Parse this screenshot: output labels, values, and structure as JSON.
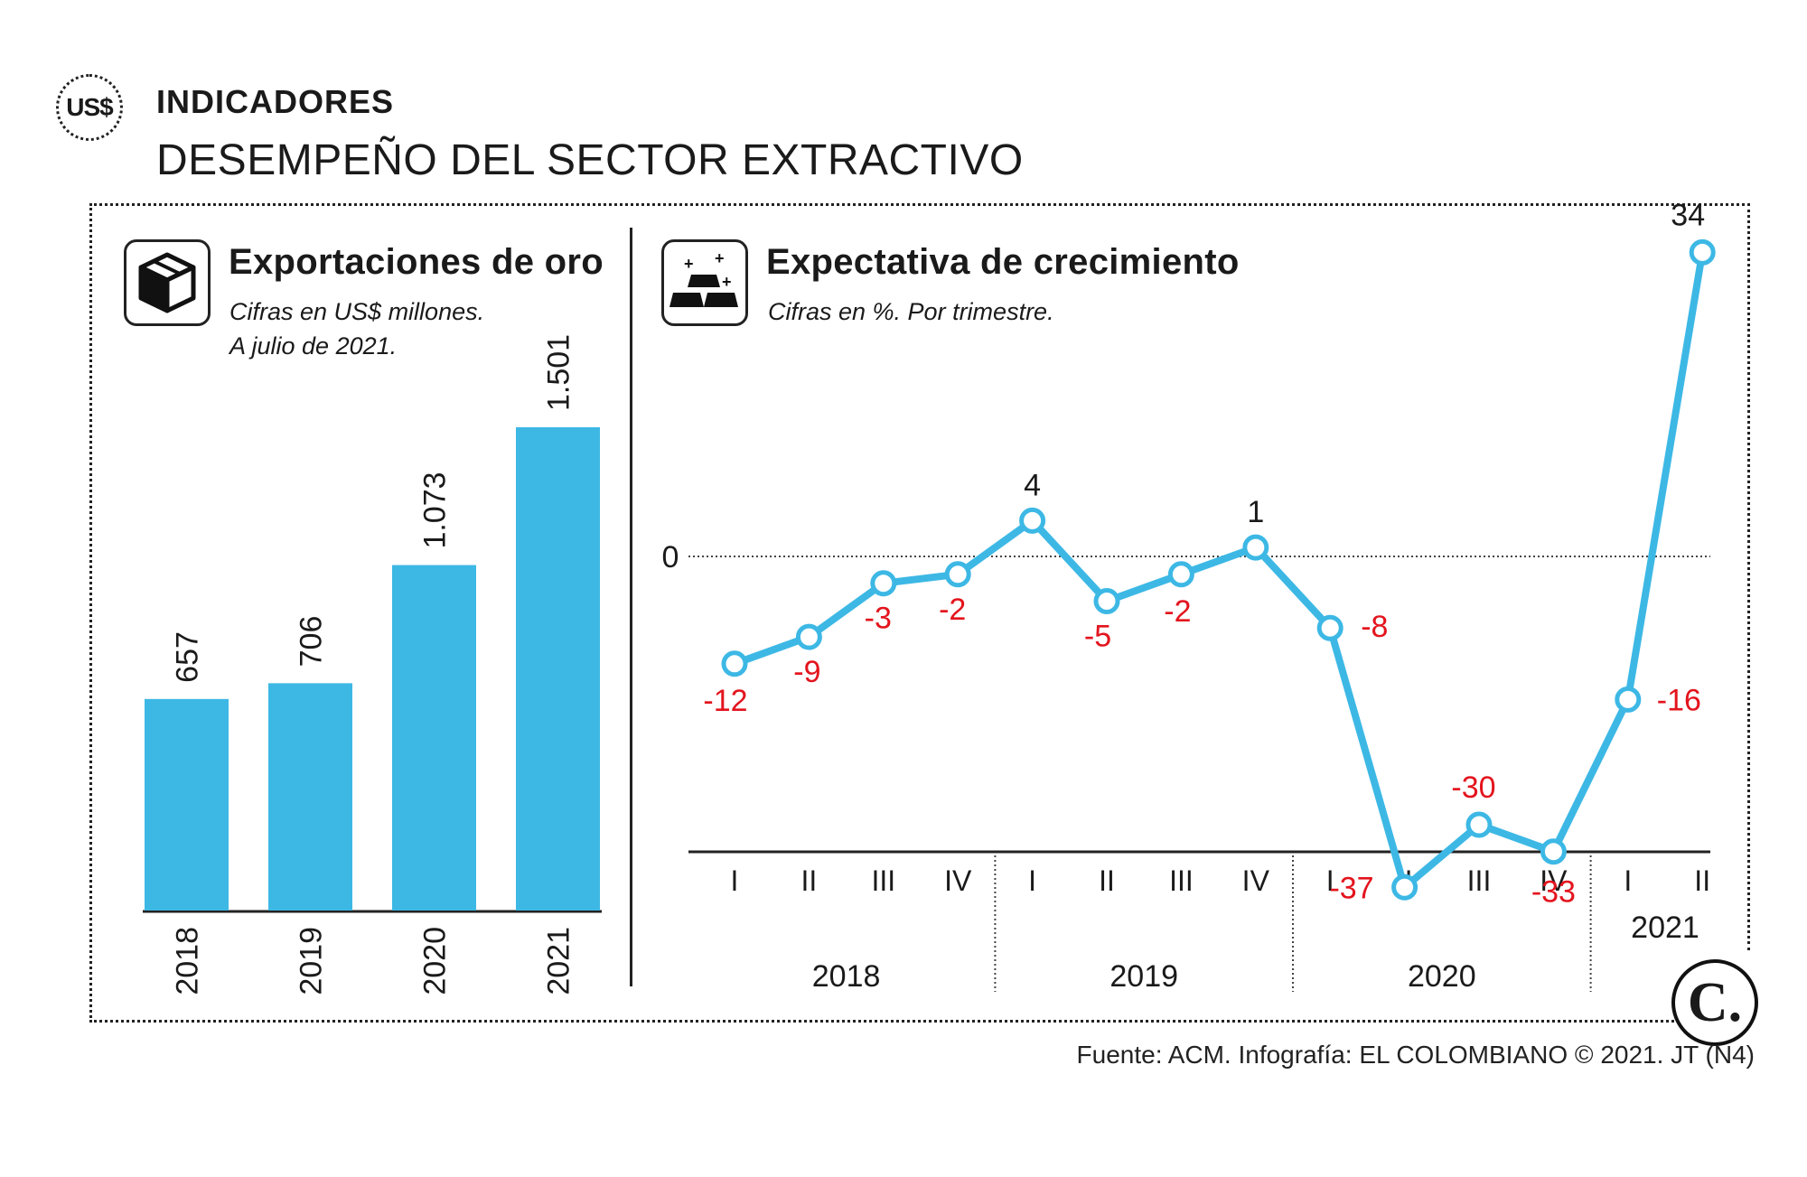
{
  "header": {
    "badge": "US$",
    "kicker": "INDICADORES",
    "headline": "DESEMPEÑO DEL SECTOR EXTRACTIVO"
  },
  "panels": {
    "left": {
      "title": "Exportaciones de oro",
      "subtitle_line1": "Cifras en US$ millones.",
      "subtitle_line2": "A julio de 2021.",
      "icon": "box-icon"
    },
    "right": {
      "title": "Expectativa de crecimiento",
      "subtitle": "Cifras en %. Por trimestre.",
      "icon": "gold-bars-icon"
    }
  },
  "colors": {
    "bar": "#3db8e5",
    "line": "#3db8e5",
    "negative_label": "#e3141d",
    "positive_label": "#1a1a1a"
  },
  "chart_data": [
    {
      "type": "bar",
      "categories": [
        "2018",
        "2019",
        "2020",
        "2021"
      ],
      "values": [
        657,
        706,
        1073,
        1501
      ],
      "value_labels": [
        "657",
        "706",
        "1.073",
        "1.501"
      ],
      "ylim": [
        0,
        1501
      ]
    },
    {
      "type": "line",
      "x": [
        "I",
        "II",
        "III",
        "IV",
        "I",
        "II",
        "III",
        "IV",
        "I",
        "II",
        "III",
        "IV",
        "I",
        "II"
      ],
      "year_groups": [
        {
          "label": "2018",
          "quarters": 4
        },
        {
          "label": "2019",
          "quarters": 4
        },
        {
          "label": "2020",
          "quarters": 4
        },
        {
          "label": "2021",
          "quarters": 2
        }
      ],
      "series": [
        {
          "values": [
            -12,
            -9,
            -3,
            -2,
            4,
            -5,
            -2,
            1,
            -8,
            -37,
            -30,
            -33,
            -16,
            34
          ]
        }
      ],
      "zero_line_label": "0",
      "ylim": [
        -49,
        38
      ]
    }
  ],
  "source": "Fuente: ACM. Infografía: EL COLOMBIANO © 2021. JT (N4)",
  "logo": "C."
}
